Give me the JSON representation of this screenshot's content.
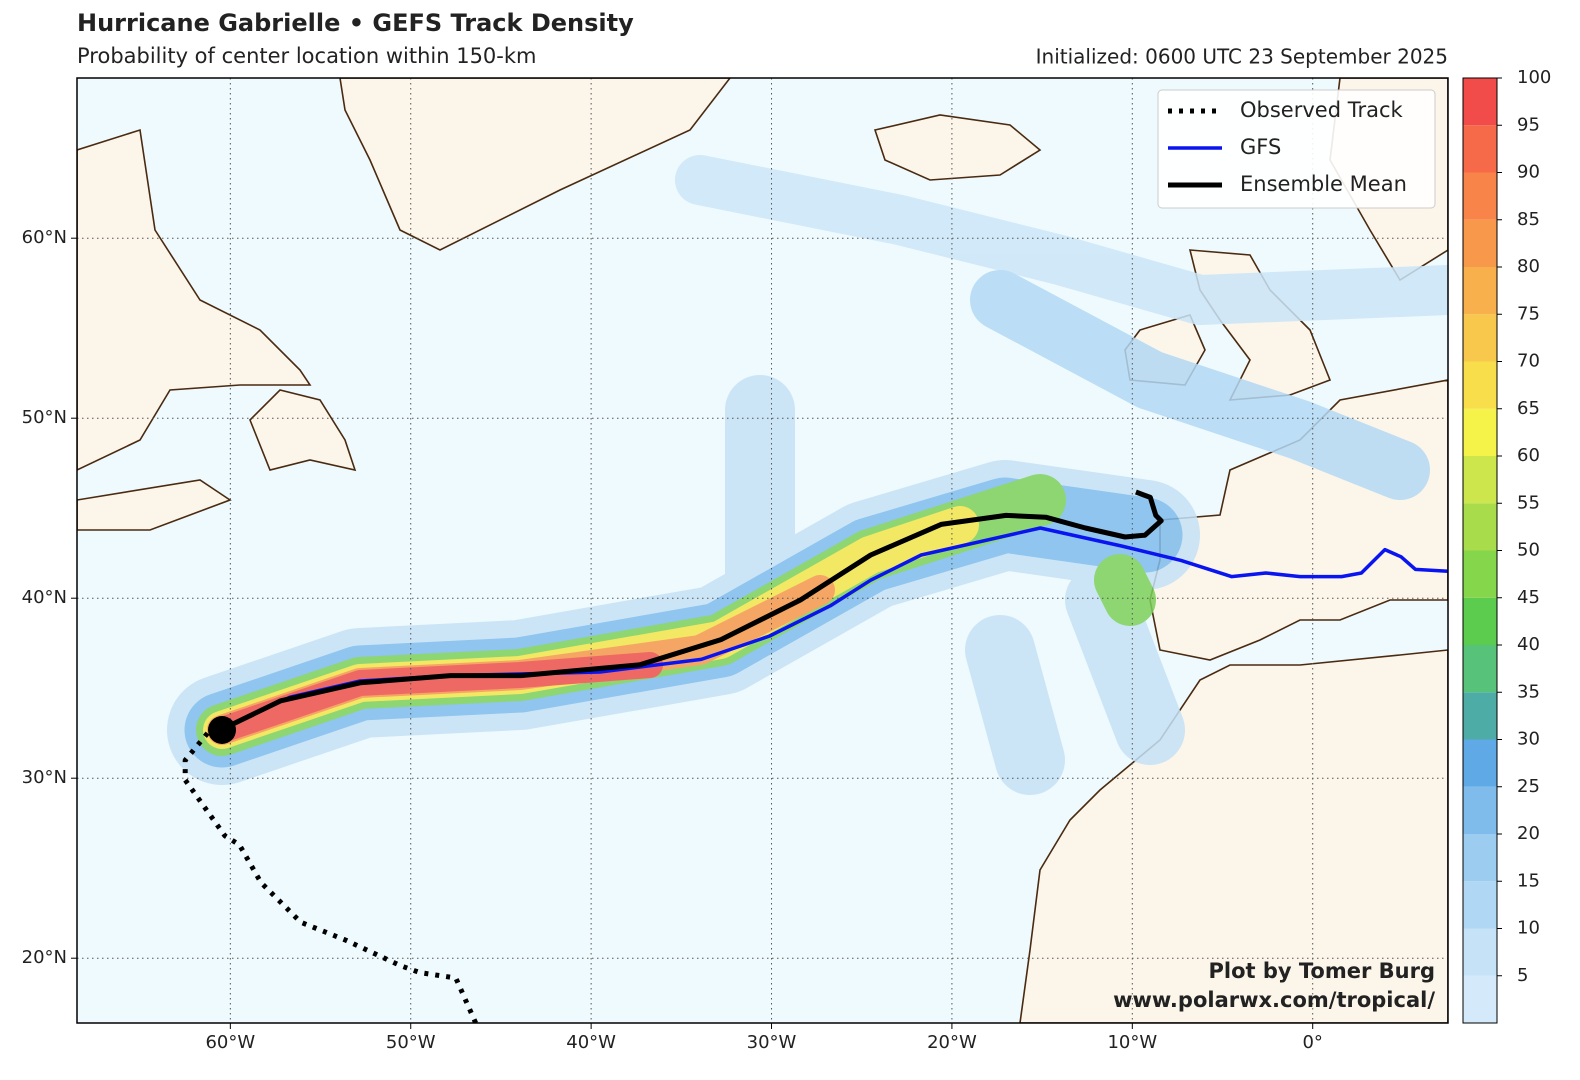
{
  "map": {
    "title": "Hurricane Gabrielle • GEFS Track Density",
    "subtitle": "Probability of center location within 150-km",
    "initialized": "Initialized: 0600 UTC 23 September 2025",
    "credit": [
      "Plot by Tomer Burg",
      "www.polarwx.com/tropical/"
    ],
    "lonlim": [
      -68.5,
      7.5
    ],
    "latlim": [
      16.4,
      68.9
    ],
    "lonticks": [
      {
        "value": -60,
        "label": "60°W"
      },
      {
        "value": -50,
        "label": "50°W"
      },
      {
        "value": -40,
        "label": "40°W"
      },
      {
        "value": -30,
        "label": "30°W"
      },
      {
        "value": -20,
        "label": "20°W"
      },
      {
        "value": -10,
        "label": "10°W"
      },
      {
        "value": 0,
        "label": "0°"
      }
    ],
    "latticks": [
      {
        "value": 20,
        "label": "20°N"
      },
      {
        "value": 30,
        "label": "30°N"
      },
      {
        "value": 40,
        "label": "40°N"
      },
      {
        "value": 50,
        "label": "50°N"
      },
      {
        "value": 60,
        "label": "60°N"
      }
    ],
    "grid": true,
    "tracks": [
      {
        "name": "Observed Track",
        "color": "#000000",
        "style": "dotted",
        "lon": [
          -46.4,
          -47.5,
          -49.5,
          -50.6,
          -53.6,
          -56.1,
          -58.3,
          -59.5,
          -60.3,
          -62.5,
          -62.5,
          -61.1
        ],
        "lat": [
          16.4,
          18.9,
          19.2,
          19.6,
          21.0,
          22.0,
          24.2,
          26.3,
          26.8,
          29.9,
          31.0,
          32.7
        ]
      },
      {
        "name": "GFS",
        "color": "#0a14f0",
        "style": "solid",
        "lon": [
          -60.5,
          -56.7,
          -52.8,
          -47.8,
          -39.5,
          -33.9,
          -30.1,
          -26.7,
          -24.5,
          -21.7,
          -15.1,
          -10.6,
          -7.3,
          -4.5,
          -2.6,
          -0.7,
          1.6,
          2.7,
          4.0,
          4.9,
          5.7,
          7.5
        ],
        "lat": [
          32.7,
          34.5,
          35.4,
          35.7,
          35.9,
          36.6,
          37.9,
          39.6,
          41.0,
          42.4,
          43.9,
          42.9,
          42.1,
          41.2,
          41.4,
          41.2,
          41.2,
          41.4,
          42.7,
          42.3,
          41.6,
          41.5
        ]
      },
      {
        "name": "Ensemble Mean",
        "color": "#000000",
        "style": "thick",
        "lon": [
          -60.5,
          -57.2,
          -52.8,
          -47.8,
          -43.9,
          -37.3,
          -32.8,
          -28.4,
          -24.5,
          -20.6,
          -17.0,
          -14.8,
          -12.6,
          -10.4,
          -9.3,
          -8.4,
          -8.7,
          -9.0,
          -9.8
        ],
        "lat": [
          32.7,
          34.3,
          35.3,
          35.7,
          35.7,
          36.3,
          37.7,
          39.9,
          42.4,
          44.1,
          44.6,
          44.5,
          43.9,
          43.4,
          43.5,
          44.3,
          44.6,
          45.6,
          45.9
        ]
      }
    ],
    "legend": "upper right",
    "colorbar": {
      "lim": [
        0,
        100
      ],
      "ticks": [
        5,
        10,
        15,
        20,
        25,
        30,
        35,
        40,
        45,
        50,
        55,
        60,
        65,
        70,
        75,
        80,
        85,
        90,
        95,
        100
      ],
      "colors": [
        "#d4e9fa",
        "#c5e2f7",
        "#b0d7f4",
        "#9ccdf1",
        "#7fbcec",
        "#5fa9e6",
        "#4daca6",
        "#56c27a",
        "#5ccc4e",
        "#86d64c",
        "#a8dc4a",
        "#cde64c",
        "#f5f24a",
        "#f7de4a",
        "#f7c84c",
        "#f8b04c",
        "#f8984a",
        "#f8844a",
        "#f66a4a",
        "#f24c4a"
      ]
    }
  }
}
